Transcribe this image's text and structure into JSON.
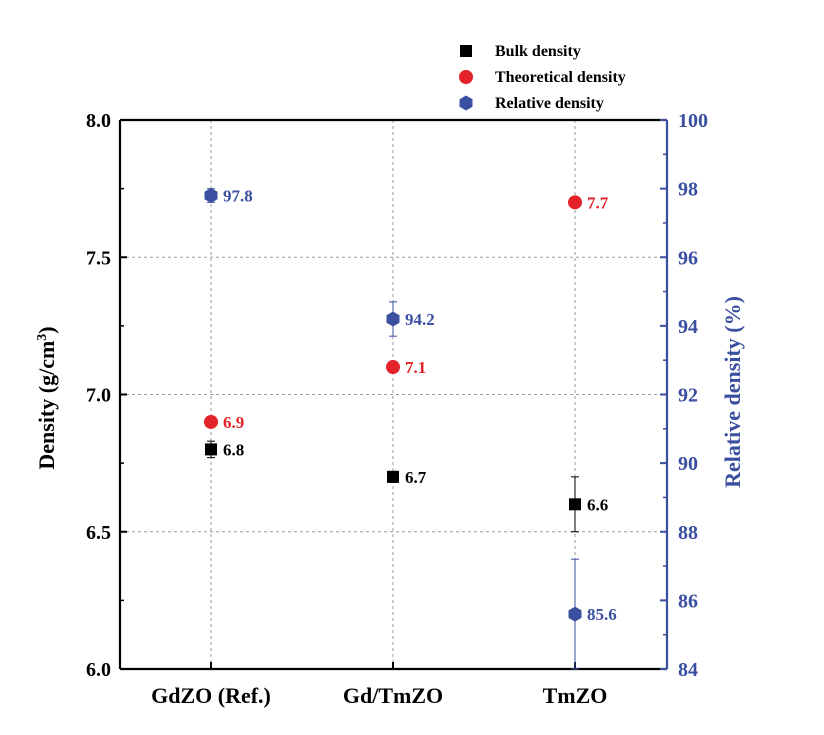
{
  "chart_data": {
    "type": "scatter",
    "categories": [
      "GdZO (Ref.)",
      "Gd/TmZO",
      "TmZO"
    ],
    "left_axis": {
      "label_main": "Density (g/cm",
      "label_sup": "3",
      "label_close": ")",
      "ylim": [
        6.0,
        8.0
      ],
      "ticks": [
        6.0,
        6.5,
        7.0,
        7.5,
        8.0
      ],
      "tick_labels": [
        "6.0",
        "6.5",
        "7.0",
        "7.5",
        "8.0"
      ]
    },
    "right_axis": {
      "label": "Relative density (%)",
      "ylim": [
        84,
        100
      ],
      "ticks": [
        84,
        86,
        88,
        90,
        92,
        94,
        96,
        98,
        100
      ],
      "tick_labels": [
        "84",
        "86",
        "88",
        "90",
        "92",
        "94",
        "96",
        "98",
        "100"
      ]
    },
    "grid": true,
    "legend_position": "top-right",
    "series": [
      {
        "name": "Bulk density",
        "axis": "left",
        "marker": "square",
        "color": "#000000",
        "values": [
          6.8,
          6.7,
          6.6
        ],
        "labels": [
          "6.8",
          "6.7",
          "6.6"
        ],
        "errors": [
          0.03,
          0.02,
          0.1
        ]
      },
      {
        "name": "Theoretical density",
        "axis": "left",
        "marker": "circle",
        "color": "#e32229",
        "values": [
          6.9,
          7.1,
          7.7
        ],
        "labels": [
          "6.9",
          "7.1",
          "7.7"
        ],
        "errors": [
          0,
          0,
          0
        ]
      },
      {
        "name": "Relative density",
        "axis": "right",
        "marker": "hexagon",
        "color": "#3a4fa0",
        "values": [
          97.8,
          94.2,
          85.6
        ],
        "labels": [
          "97.8",
          "94.2",
          "85.6"
        ],
        "errors": [
          0.2,
          0.5,
          1.6
        ]
      }
    ]
  }
}
